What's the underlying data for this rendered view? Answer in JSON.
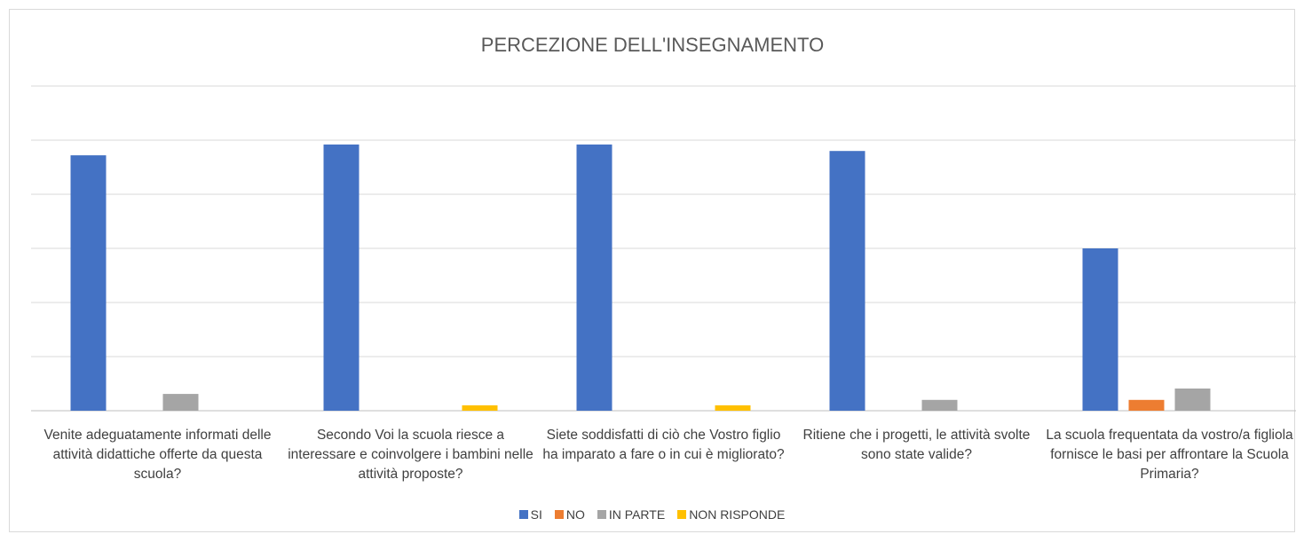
{
  "chart_data": {
    "type": "bar",
    "title": "PERCEZIONE DELL'INSEGNAMENTO",
    "categories": [
      "Venite adeguatamente informati delle attività didattiche offerte da questa scuola?",
      "Secondo Voi la scuola riesce a interessare e coinvolgere i bambini nelle attività proposte?",
      "Siete soddisfatti di ciò che Vostro figlio ha imparato a fare o in cui è migliorato?",
      "Ritiene che i progetti, le attività svolte sono state valide?",
      "La scuola frequentata da vostro/a figliola fornisce le basi per affrontare la Scuola Primaria?"
    ],
    "series": [
      {
        "name": "SI",
        "color": "#4472c4",
        "values": [
          4.72,
          4.92,
          4.92,
          4.8,
          3.0
        ]
      },
      {
        "name": "NO",
        "color": "#ed7d31",
        "values": [
          0,
          0,
          0,
          0,
          0.2
        ]
      },
      {
        "name": "IN PARTE",
        "color": "#a5a5a5",
        "values": [
          0.31,
          0,
          0,
          0.2,
          0.41
        ]
      },
      {
        "name": "NON RISPONDE",
        "color": "#ffc000",
        "values": [
          0,
          0.1,
          0.1,
          0,
          0
        ]
      }
    ],
    "ylim": [
      0,
      6
    ],
    "yticks": [
      0,
      1,
      2,
      3,
      4,
      5,
      6
    ],
    "grid": true,
    "legend": "bottom"
  }
}
